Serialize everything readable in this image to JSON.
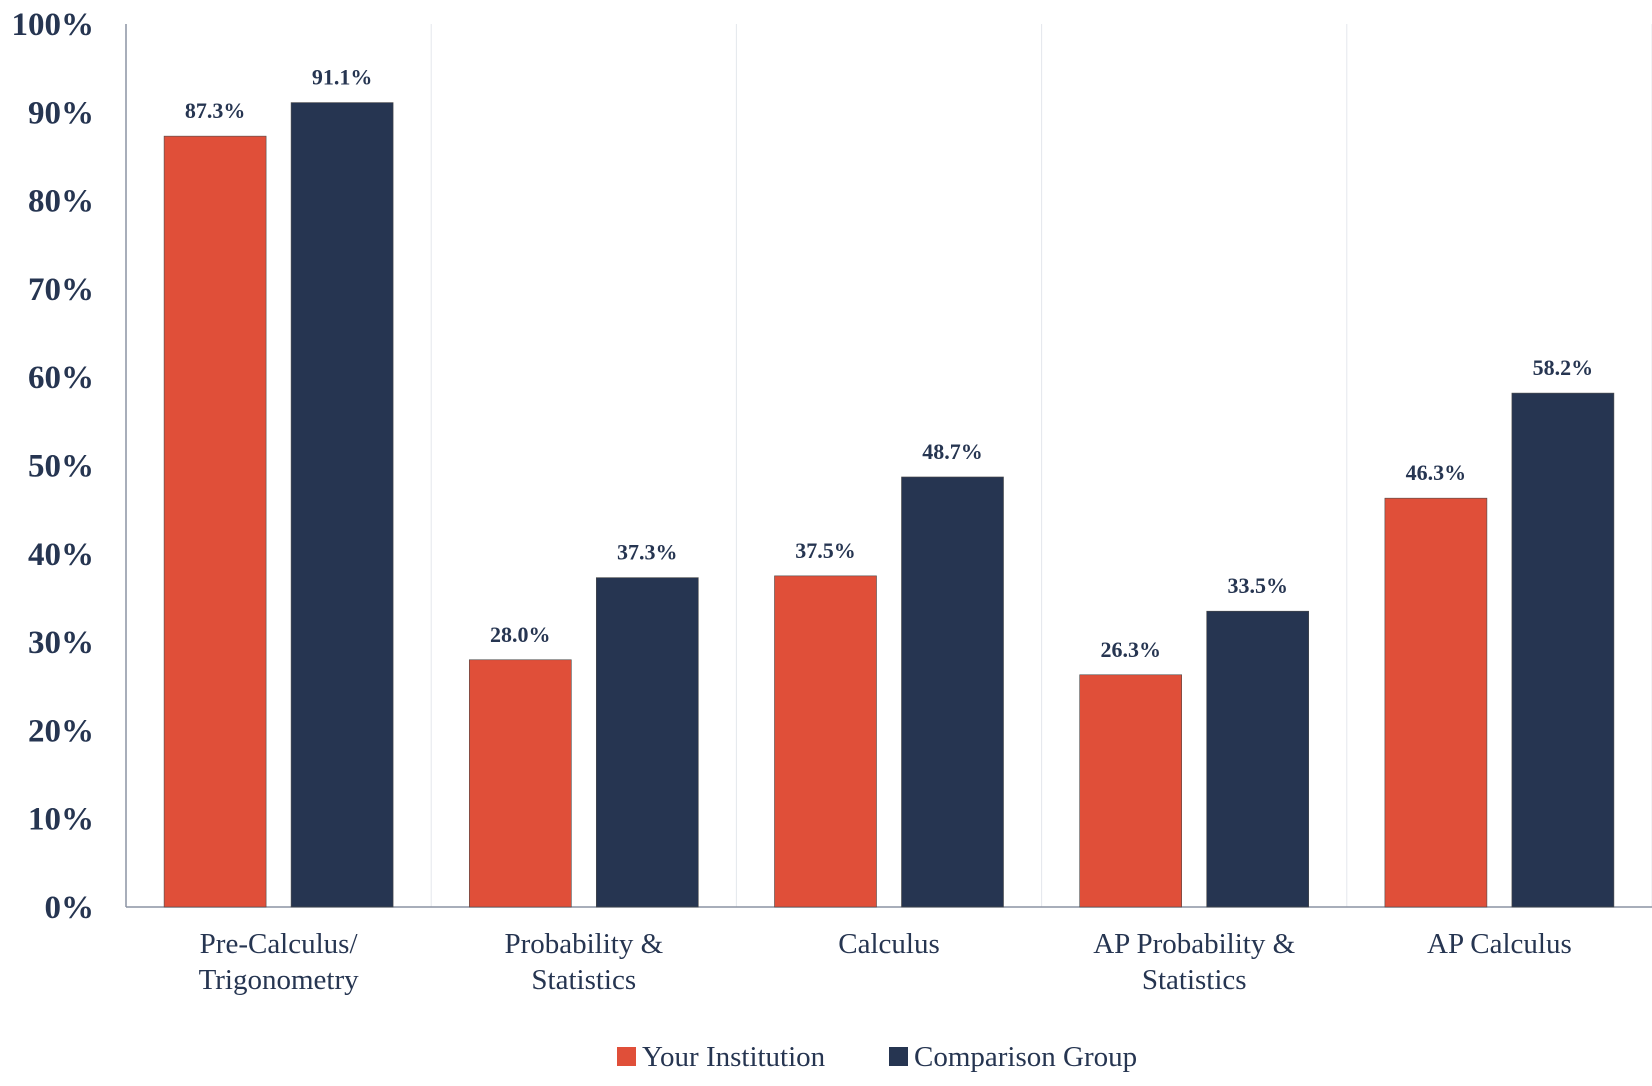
{
  "chart_data": {
    "type": "bar",
    "title": "",
    "xlabel": "",
    "ylabel": "",
    "ylim": [
      0,
      100
    ],
    "yticks": [
      "0%",
      "10%",
      "20%",
      "30%",
      "40%",
      "50%",
      "60%",
      "70%",
      "80%",
      "90%",
      "100%"
    ],
    "categories": [
      [
        "Pre-Calculus/",
        "Trigonometry"
      ],
      [
        "Probability &",
        "Statistics"
      ],
      [
        "Calculus"
      ],
      [
        "AP Probability &",
        "Statistics"
      ],
      [
        "AP Calculus"
      ]
    ],
    "series": [
      {
        "name": "Your Institution",
        "color": "#E04F39",
        "values": [
          87.3,
          28.0,
          37.5,
          26.3,
          46.3
        ],
        "labels": [
          "87.3%",
          "28.0%",
          "37.5%",
          "26.3%",
          "46.3%"
        ]
      },
      {
        "name": "Comparison Group",
        "color": "#263551",
        "values": [
          91.1,
          37.3,
          48.7,
          33.5,
          58.2
        ],
        "labels": [
          "91.1%",
          "37.3%",
          "48.7%",
          "33.5%",
          "58.2%"
        ]
      }
    ],
    "grid": "vertical category separators",
    "legend": "bottom-center"
  }
}
